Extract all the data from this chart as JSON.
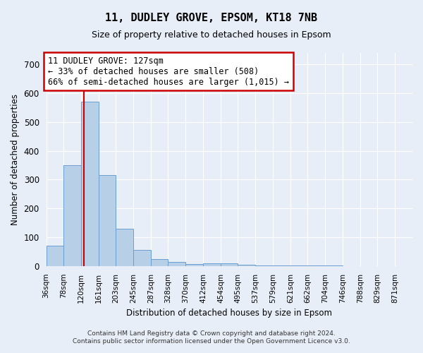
{
  "title": "11, DUDLEY GROVE, EPSOM, KT18 7NB",
  "subtitle": "Size of property relative to detached houses in Epsom",
  "xlabel": "Distribution of detached houses by size in Epsom",
  "ylabel": "Number of detached properties",
  "bin_labels": [
    "36sqm",
    "78sqm",
    "120sqm",
    "161sqm",
    "203sqm",
    "245sqm",
    "287sqm",
    "328sqm",
    "370sqm",
    "412sqm",
    "454sqm",
    "495sqm",
    "537sqm",
    "579sqm",
    "621sqm",
    "662sqm",
    "704sqm",
    "746sqm",
    "788sqm",
    "829sqm",
    "871sqm"
  ],
  "bin_edges": [
    36,
    78,
    120,
    161,
    203,
    245,
    287,
    328,
    370,
    412,
    454,
    495,
    537,
    579,
    621,
    662,
    704,
    746,
    788,
    829,
    871,
    913
  ],
  "bar_heights": [
    70,
    350,
    570,
    315,
    130,
    57,
    25,
    14,
    8,
    10,
    10,
    5,
    3,
    2,
    1,
    1,
    1,
    0,
    0,
    0,
    0
  ],
  "bar_color": "#b8cfe8",
  "bar_edge_color": "#6a9fd0",
  "vline_x": 127,
  "vline_color": "#cc0000",
  "annotation_text": "11 DUDLEY GROVE: 127sqm\n← 33% of detached houses are smaller (508)\n66% of semi-detached houses are larger (1,015) →",
  "annotation_box_color": "#ffffff",
  "annotation_box_edge_color": "#cc0000",
  "ylim": [
    0,
    740
  ],
  "yticks": [
    0,
    100,
    200,
    300,
    400,
    500,
    600,
    700
  ],
  "background_color": "#e8eef7",
  "grid_color": "#ffffff",
  "footer_line1": "Contains HM Land Registry data © Crown copyright and database right 2024.",
  "footer_line2": "Contains public sector information licensed under the Open Government Licence v3.0."
}
